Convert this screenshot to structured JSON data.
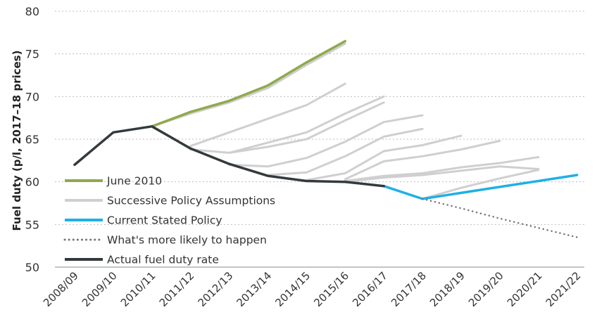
{
  "chart_data": {
    "type": "line",
    "title": "",
    "xlabel": "",
    "ylabel": "Fuel duty (p/l, 2017–18 prices)",
    "ylim": [
      50,
      80
    ],
    "yticks": [
      "50",
      "55",
      "60",
      "65",
      "70",
      "75",
      "80"
    ],
    "grid": true,
    "legend_position": "bottom-left",
    "categories": [
      "2008/09",
      "2009/10",
      "2010/11",
      "2011/12",
      "2012/13",
      "2013/14",
      "2014/15",
      "2015/16",
      "2016/17",
      "2017/18",
      "2018/19",
      "2019/20",
      "2020/21",
      "2021/22"
    ],
    "policy_assumptions": [
      [
        [
          2,
          66.5
        ],
        [
          3,
          68.0
        ],
        [
          4,
          69.3
        ],
        [
          5,
          71.0
        ],
        [
          6,
          73.7
        ],
        [
          7,
          76.2
        ]
      ],
      [
        [
          3,
          64.2
        ],
        [
          4,
          65.8
        ],
        [
          5,
          67.4
        ],
        [
          6,
          69.0
        ],
        [
          7,
          71.5
        ]
      ],
      [
        [
          3,
          63.8
        ],
        [
          4,
          63.4
        ],
        [
          5,
          64.6
        ],
        [
          6,
          65.8
        ],
        [
          7,
          68.0
        ],
        [
          8,
          70.0
        ]
      ],
      [
        [
          4,
          63.4
        ],
        [
          5,
          64.1
        ],
        [
          6,
          65.0
        ],
        [
          7,
          67.2
        ],
        [
          8,
          69.3
        ]
      ],
      [
        [
          4,
          62.0
        ],
        [
          5,
          61.8
        ],
        [
          6,
          62.8
        ],
        [
          7,
          64.7
        ],
        [
          8,
          67.0
        ],
        [
          9,
          67.8
        ]
      ],
      [
        [
          5,
          60.8
        ],
        [
          6,
          61.1
        ],
        [
          7,
          63.0
        ],
        [
          8,
          65.3
        ],
        [
          9,
          66.2
        ]
      ],
      [
        [
          6,
          60.2
        ],
        [
          7,
          61.0
        ],
        [
          8,
          63.6
        ],
        [
          9,
          64.3
        ],
        [
          10,
          65.4
        ]
      ],
      [
        [
          7,
          60.3
        ],
        [
          8,
          62.4
        ],
        [
          9,
          63.0
        ],
        [
          10,
          63.8
        ],
        [
          11,
          64.8
        ]
      ],
      [
        [
          7,
          60.1
        ],
        [
          8,
          60.7
        ],
        [
          9,
          61.0
        ],
        [
          10,
          61.7
        ],
        [
          11,
          62.2
        ],
        [
          12,
          62.9
        ]
      ],
      [
        [
          7,
          60.0
        ],
        [
          8,
          60.5
        ],
        [
          9,
          60.8
        ],
        [
          10,
          61.3
        ],
        [
          11,
          61.8
        ],
        [
          12,
          61.5
        ]
      ],
      [
        [
          9,
          58.0
        ],
        [
          10,
          59.3
        ],
        [
          11,
          60.4
        ],
        [
          12,
          61.4
        ]
      ]
    ],
    "series": [
      {
        "name": "June 2010",
        "color": "#8faa4b",
        "style": "solid",
        "points": [
          [
            2,
            66.5
          ],
          [
            3,
            68.2
          ],
          [
            4,
            69.5
          ],
          [
            5,
            71.3
          ],
          [
            6,
            74.0
          ],
          [
            7,
            76.5
          ]
        ]
      },
      {
        "name": "Successive Policy Assumptions",
        "color": "#cfcfcf",
        "style": "solid",
        "points": []
      },
      {
        "name": "Current Stated Policy",
        "color": "#1fb0e6",
        "style": "solid",
        "points": [
          [
            8,
            59.5
          ],
          [
            9,
            58.0
          ],
          [
            10,
            58.7
          ],
          [
            11,
            59.4
          ],
          [
            12,
            60.1
          ],
          [
            13,
            60.8
          ]
        ]
      },
      {
        "name": "What's more likely to happen",
        "color": "#777777",
        "style": "dotted",
        "points": [
          [
            9,
            58.0
          ],
          [
            10,
            56.9
          ],
          [
            11,
            55.7
          ],
          [
            12,
            54.6
          ],
          [
            13,
            53.5
          ]
        ]
      },
      {
        "name": "Actual fuel duty rate",
        "color": "#333a3d",
        "style": "solid",
        "points": [
          [
            0,
            62.0
          ],
          [
            1,
            65.8
          ],
          [
            2,
            66.5
          ],
          [
            3,
            63.9
          ],
          [
            4,
            62.1
          ],
          [
            5,
            60.7
          ],
          [
            6,
            60.1
          ],
          [
            7,
            60.0
          ],
          [
            8,
            59.5
          ]
        ]
      }
    ]
  }
}
